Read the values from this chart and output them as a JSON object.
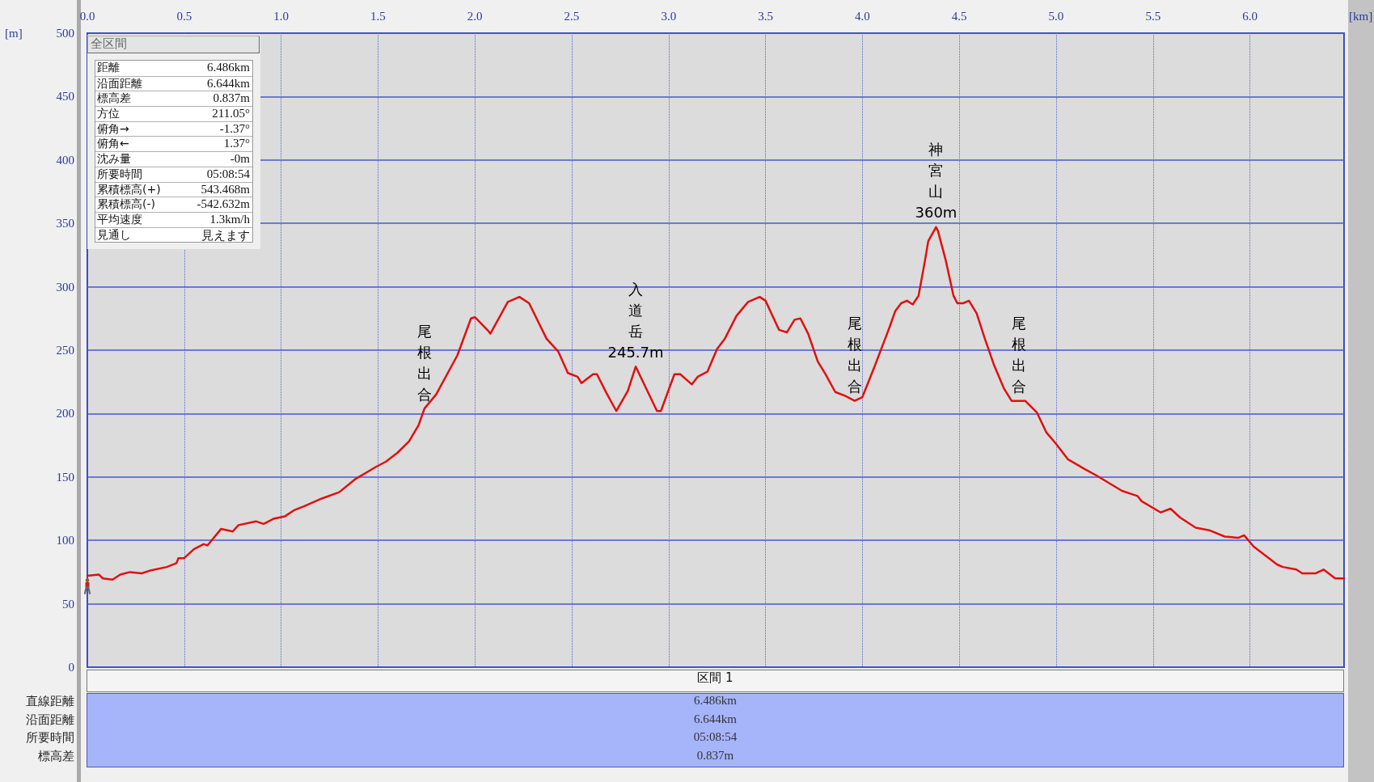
{
  "chart_data": [
    {
      "type": "line",
      "xlabel": "[km]",
      "ylabel": "[m]",
      "x": [
        0,
        0.06,
        0.08,
        0.13,
        0.17,
        0.22,
        0.28,
        0.32,
        0.41,
        0.46,
        0.47,
        0.5,
        0.55,
        0.6,
        0.62,
        0.69,
        0.75,
        0.78,
        0.87,
        0.91,
        0.96,
        1.02,
        1.07,
        1.12,
        1.21,
        1.3,
        1.38,
        1.49,
        1.54,
        1.6,
        1.66,
        1.71,
        1.74,
        1.8,
        1.91,
        1.98,
        2.0,
        2.07,
        2.08,
        2.17,
        2.23,
        2.28,
        2.37,
        2.43,
        2.48,
        2.53,
        2.55,
        2.61,
        2.63,
        2.68,
        2.73,
        2.79,
        2.83,
        2.89,
        2.94,
        2.96,
        3.03,
        3.06,
        3.12,
        3.15,
        3.2,
        3.25,
        3.29,
        3.35,
        3.41,
        3.47,
        3.5,
        3.57,
        3.61,
        3.65,
        3.68,
        3.72,
        3.77,
        3.81,
        3.86,
        3.91,
        3.96,
        4.0,
        4.06,
        4.11,
        4.14,
        4.17,
        4.2,
        4.23,
        4.26,
        4.29,
        4.32,
        4.34,
        4.38,
        4.39,
        4.43,
        4.47,
        4.49,
        4.52,
        4.55,
        4.59,
        4.63,
        4.68,
        4.73,
        4.77,
        4.84,
        4.9,
        4.95,
        5.0,
        5.06,
        5.15,
        5.21,
        5.34,
        5.42,
        5.44,
        5.54,
        5.59,
        5.64,
        5.72,
        5.79,
        5.87,
        5.94,
        5.97,
        6.02,
        6.14,
        6.17,
        6.24,
        6.27,
        6.34,
        6.38,
        6.44,
        6.486
      ],
      "values": [
        72,
        73,
        70,
        69,
        73,
        75,
        74,
        76,
        79,
        82,
        86,
        86,
        93,
        97,
        96,
        109,
        107,
        112,
        115,
        113,
        117,
        119,
        124,
        127,
        133,
        138,
        148,
        158,
        162,
        169,
        178,
        191,
        204,
        215,
        246,
        275,
        276,
        265,
        263,
        288,
        292,
        287,
        259,
        249,
        232,
        229,
        224,
        231,
        231,
        216,
        202,
        218,
        237,
        218,
        202,
        202,
        231,
        231,
        223,
        229,
        233,
        251,
        259,
        277,
        288,
        292,
        289,
        266,
        264,
        274,
        275,
        263,
        241,
        231,
        217,
        214,
        210,
        213,
        236,
        256,
        268,
        281,
        287,
        289,
        286,
        293,
        318,
        336,
        347,
        344,
        321,
        293,
        287,
        287,
        289,
        279,
        260,
        238,
        220,
        210,
        210,
        201,
        185,
        176,
        164,
        156,
        151,
        139,
        135,
        131,
        122,
        125,
        118,
        110,
        108,
        103,
        102,
        104,
        95,
        81,
        79,
        77,
        74,
        74,
        77,
        70,
        70
      ],
      "color": "#e01010",
      "xlim": [
        0,
        6.486
      ],
      "ylim": [
        0,
        500
      ],
      "xticks": [
        {
          "value": 0,
          "label": "0.0"
        },
        0.5,
        {
          "value": 1,
          "label": "1.0"
        },
        1.5,
        {
          "value": 2,
          "label": "2.0"
        },
        2.5,
        {
          "value": 3,
          "label": "3.0"
        },
        3.5,
        {
          "value": 4,
          "label": "4.0"
        },
        4.5,
        {
          "value": 5,
          "label": "5.0"
        },
        5.5,
        {
          "value": 6,
          "label": "6.0"
        }
      ],
      "yticks": [
        0,
        50,
        100,
        150,
        200,
        250,
        300,
        350,
        400,
        450,
        500
      ],
      "grid": true,
      "annotations": [
        {
          "text": "尾根出合",
          "x": 1.74,
          "y": 204
        },
        {
          "text": "入道岳245.7m",
          "x": 2.83,
          "y": 237
        },
        {
          "text": "尾根出合",
          "x": 3.96,
          "y": 210
        },
        {
          "text": "神宮山360m",
          "x": 4.38,
          "y": 347
        },
        {
          "text": "尾根出合",
          "x": 4.81,
          "y": 210
        }
      ]
    },
    {
      "type": "other",
      "title": "全区間",
      "annotations": [
        "距離",
        "6.486km",
        "沿面距離",
        "6.644km",
        "標高差",
        "0.837m",
        "方位",
        "211.05°",
        "俯角→",
        "-1.37°",
        "俯角←",
        "1.37°",
        "沈み量",
        "-0m",
        "所要時間",
        "05:08:54",
        "累積標高(+)",
        "543.468m",
        "累積標高(-)",
        "-542.632m",
        "平均速度",
        "1.3km/h",
        "見通し",
        "見えます"
      ]
    },
    {
      "type": "other",
      "title": "区間 1",
      "annotations": [
        "直線距離",
        "6.486km",
        "沿面距離",
        "6.644km",
        "所要時間",
        "05:08:54",
        "標高差",
        "0.837m"
      ]
    }
  ]
}
